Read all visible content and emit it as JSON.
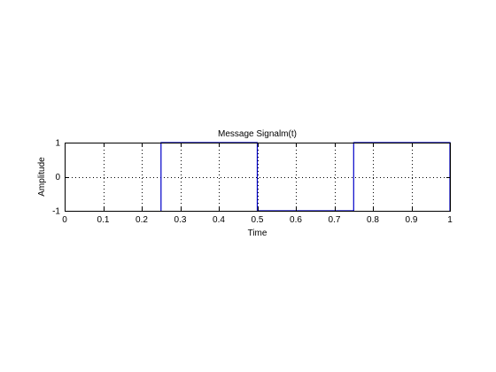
{
  "chart_data": {
    "type": "line",
    "title": "Message Signalm(t)",
    "xlabel": "Time",
    "ylabel": "Amplitude",
    "xlim": [
      0,
      1
    ],
    "ylim": [
      -1,
      1
    ],
    "x_ticks": [
      0,
      0.1,
      0.2,
      0.3,
      0.4,
      0.5,
      0.6,
      0.7,
      0.8,
      0.9,
      1
    ],
    "x_tick_labels": [
      "0",
      "0.1",
      "0.2",
      "0.3",
      "0.4",
      "0.5",
      "0.6",
      "0.7",
      "0.8",
      "0.9",
      "1"
    ],
    "y_ticks": [
      -1,
      0,
      1
    ],
    "y_tick_labels": [
      "-1",
      "0",
      "1"
    ],
    "grid": true,
    "series": [
      {
        "color": "#0000c8",
        "x": [
          0.25,
          0.25,
          0.5,
          0.5,
          0.75,
          0.75,
          1.0,
          1.0
        ],
        "y": [
          -1,
          1,
          1,
          -1,
          -1,
          1,
          1,
          -1
        ]
      }
    ]
  }
}
